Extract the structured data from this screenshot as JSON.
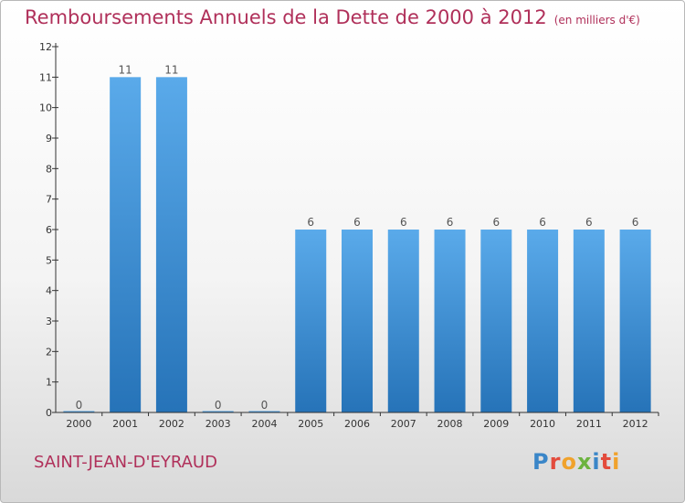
{
  "header": {
    "title": "Remboursements Annuels de la Dette de 2000 à 2012",
    "unit_note": "(en milliers d'€)"
  },
  "commune": "SAINT-JEAN-D'EYRAUD",
  "logo": {
    "text": "Proxiti",
    "letter_colors": [
      "#3a86c8",
      "#e34b3c",
      "#f0a22c",
      "#6cb33f",
      "#3a86c8",
      "#e34b3c",
      "#f0a22c"
    ]
  },
  "colors": {
    "title": "#b0305a",
    "bar_top": "#5aaaea",
    "bar_bottom": "#2673b8",
    "axis": "#333333"
  },
  "chart_data": {
    "type": "bar",
    "categories": [
      "2000",
      "2001",
      "2002",
      "2003",
      "2004",
      "2005",
      "2006",
      "2007",
      "2008",
      "2009",
      "2010",
      "2011",
      "2012"
    ],
    "values": [
      0,
      11,
      11,
      0,
      0,
      6,
      6,
      6,
      6,
      6,
      6,
      6,
      6
    ],
    "data_labels": [
      "0",
      "11",
      "11",
      "0",
      "0",
      "6",
      "6",
      "6",
      "6",
      "6",
      "6",
      "6",
      "6"
    ],
    "ylim": [
      0,
      12
    ],
    "yticks": [
      "0",
      "1",
      "2",
      "3",
      "4",
      "5",
      "6",
      "7",
      "8",
      "9",
      "10",
      "11",
      "12"
    ],
    "grid": false,
    "legend": "none"
  }
}
